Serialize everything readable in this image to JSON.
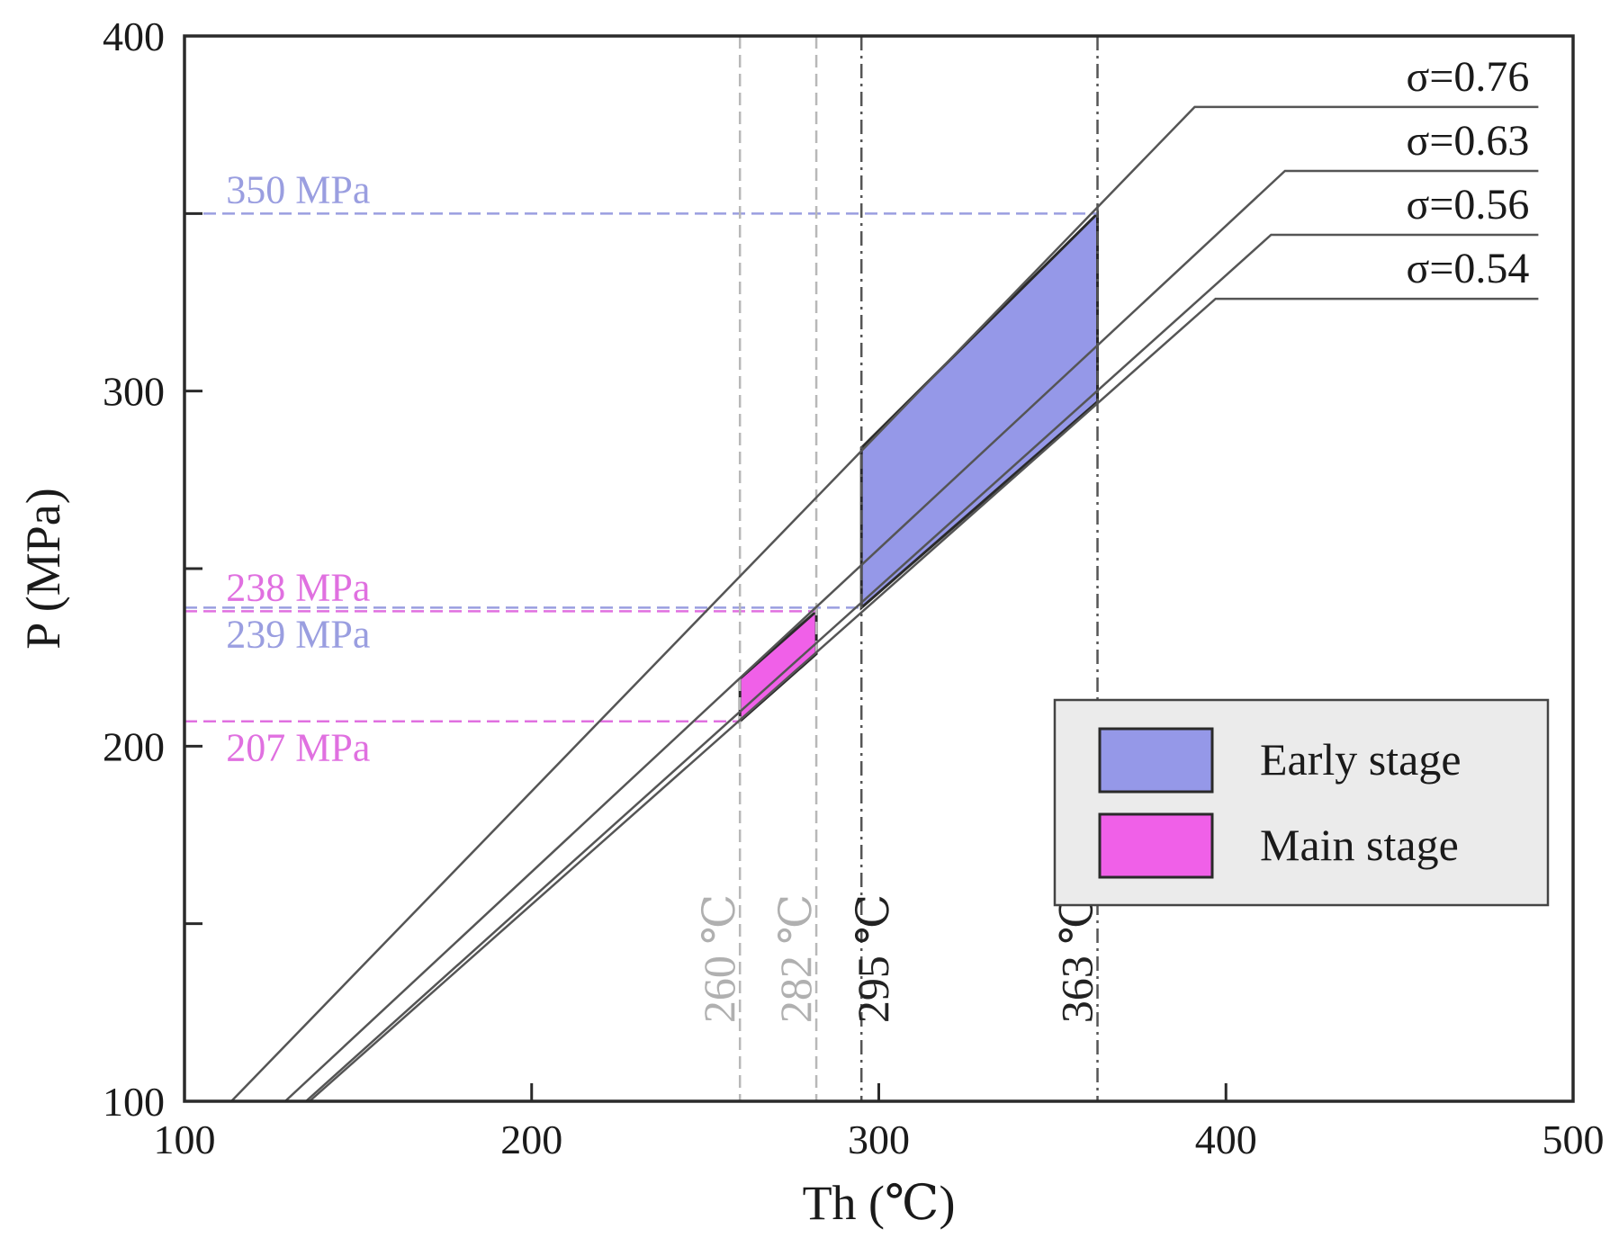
{
  "chart_data": {
    "type": "line",
    "title": "",
    "xlabel": "Th (℃)",
    "ylabel": "P (MPa)",
    "xlim": [
      100,
      500
    ],
    "ylim": [
      100,
      400
    ],
    "x_ticks": [
      {
        "value": 100,
        "label": "100"
      },
      {
        "value": 200,
        "label": "200"
      },
      {
        "value": 300,
        "label": "300"
      },
      {
        "value": 400,
        "label": "400"
      },
      {
        "value": 500,
        "label": "500"
      }
    ],
    "y_ticks": [
      {
        "value": 100,
        "label": "100"
      },
      {
        "value": 150,
        "label": ""
      },
      {
        "value": 200,
        "label": "200"
      },
      {
        "value": 250,
        "label": ""
      },
      {
        "value": 300,
        "label": "300"
      },
      {
        "value": 350,
        "label": ""
      },
      {
        "value": 400,
        "label": "400"
      }
    ],
    "series": [
      {
        "name": "σ=0.76",
        "label": "σ=0.76",
        "points": [
          [
            113.5,
            100
          ],
          [
            391,
            380
          ],
          [
            490,
            380
          ]
        ]
      },
      {
        "name": "σ=0.63",
        "label": "σ=0.63",
        "points": [
          [
            129,
            100
          ],
          [
            417,
            362
          ],
          [
            490,
            362
          ]
        ]
      },
      {
        "name": "σ=0.56",
        "label": "σ=0.56",
        "points": [
          [
            135,
            100
          ],
          [
            413,
            344
          ],
          [
            490,
            344
          ]
        ]
      },
      {
        "name": "σ=0.54",
        "label": "σ=0.54",
        "points": [
          [
            136,
            100
          ],
          [
            397,
            326
          ],
          [
            490,
            326
          ]
        ]
      }
    ],
    "pressure_lines": [
      {
        "label": "350 MPa",
        "value": 350,
        "x_end": 363,
        "color": "#9a9ee0"
      },
      {
        "label": "239 MPa",
        "value": 239,
        "x_end": 295,
        "color": "#9a9ee0"
      },
      {
        "label": "238 MPa",
        "value": 238,
        "x_end": 282,
        "color": "#e070e0"
      },
      {
        "label": "207 MPa",
        "value": 207,
        "x_end": 260,
        "color": "#e070e0"
      }
    ],
    "temperature_lines": [
      {
        "label": "260 ℃",
        "value": 260,
        "color": "#b8b8b8",
        "style": "dash"
      },
      {
        "label": "282 ℃",
        "value": 282,
        "color": "#b8b8b8",
        "style": "dash"
      },
      {
        "label": "295 ℃",
        "value": 295,
        "color": "#555555",
        "style": "dashdot"
      },
      {
        "label": "363 ℃",
        "value": 363,
        "color": "#555555",
        "style": "dashdot"
      }
    ],
    "regions": [
      {
        "name": "Early stage",
        "color": "#9598e8",
        "polygon": [
          [
            295,
            284
          ],
          [
            363,
            350
          ],
          [
            363,
            297
          ],
          [
            295,
            239
          ]
        ]
      },
      {
        "name": "Main stage",
        "color": "#f060e8",
        "polygon": [
          [
            260,
            219
          ],
          [
            282,
            238
          ],
          [
            282,
            226
          ],
          [
            260,
            207
          ]
        ]
      }
    ],
    "legend": {
      "position": "lower-right",
      "entries": [
        {
          "label": "Early stage",
          "color": "#9598e8"
        },
        {
          "label": "Main stage",
          "color": "#f060e8"
        }
      ]
    }
  }
}
